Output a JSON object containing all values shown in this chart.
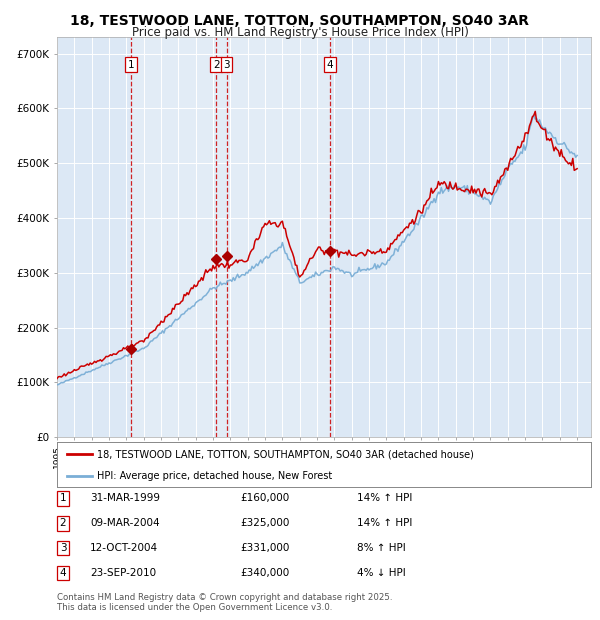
{
  "title_line1": "18, TESTWOOD LANE, TOTTON, SOUTHAMPTON, SO40 3AR",
  "title_line2": "Price paid vs. HM Land Registry's House Price Index (HPI)",
  "background_color": "#ffffff",
  "plot_bg_color": "#dce8f5",
  "grid_color": "#ffffff",
  "y_ticks": [
    0,
    100000,
    200000,
    300000,
    400000,
    500000,
    600000,
    700000
  ],
  "y_tick_labels": [
    "£0",
    "£100K",
    "£200K",
    "£300K",
    "£400K",
    "£500K",
    "£600K",
    "£700K"
  ],
  "x_start_year": 1995,
  "x_end_year": 2025,
  "sale_dates": [
    "1999-03-31",
    "2004-03-09",
    "2004-10-12",
    "2010-09-23"
  ],
  "sale_prices": [
    160000,
    325000,
    331000,
    340000
  ],
  "sale_labels": [
    "1",
    "2",
    "3",
    "4"
  ],
  "vline_color": "#cc0000",
  "sale_marker_color": "#aa0000",
  "red_line_color": "#cc0000",
  "blue_line_color": "#7aaed6",
  "legend_red_label": "18, TESTWOOD LANE, TOTTON, SOUTHAMPTON, SO40 3AR (detached house)",
  "legend_blue_label": "HPI: Average price, detached house, New Forest",
  "table_entries": [
    [
      "1",
      "31-MAR-1999",
      "£160,000",
      "14% ↑ HPI"
    ],
    [
      "2",
      "09-MAR-2004",
      "£325,000",
      "14% ↑ HPI"
    ],
    [
      "3",
      "12-OCT-2004",
      "£331,000",
      "8% ↑ HPI"
    ],
    [
      "4",
      "23-SEP-2010",
      "£340,000",
      "4% ↓ HPI"
    ]
  ],
  "footnote": "Contains HM Land Registry data © Crown copyright and database right 2025.\nThis data is licensed under the Open Government Licence v3.0.",
  "hpi_milestones": {
    "0": 95000,
    "60": 162000,
    "108": 272000,
    "120": 285000,
    "132": 302000,
    "156": 350000,
    "168": 282000,
    "192": 310000,
    "204": 296000,
    "228": 318000,
    "252": 398000,
    "264": 448000,
    "276": 458000,
    "288": 448000,
    "300": 428000,
    "312": 488000,
    "324": 528000,
    "330": 588000,
    "336": 568000,
    "348": 538000,
    "360": 512000
  },
  "red_milestones": {
    "0": 108000,
    "60": 175000,
    "108": 312000,
    "120": 315000,
    "132": 325000,
    "144": 388000,
    "156": 392000,
    "168": 292000,
    "180": 342000,
    "192": 342000,
    "204": 332000,
    "228": 342000,
    "252": 412000,
    "264": 462000,
    "276": 458000,
    "288": 452000,
    "300": 442000,
    "312": 492000,
    "324": 552000,
    "330": 588000,
    "336": 562000,
    "348": 518000,
    "360": 492000
  }
}
